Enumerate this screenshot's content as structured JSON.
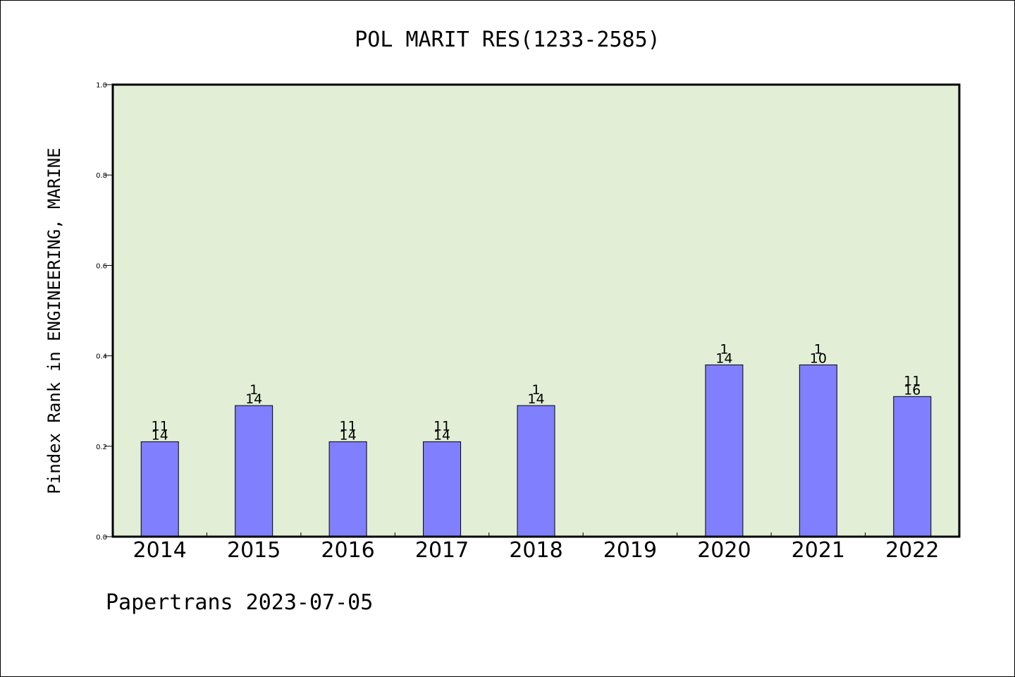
{
  "chart_data": {
    "type": "bar",
    "title": "POL MARIT RES(1233-2585)",
    "xlabel": "",
    "ylabel": "Pindex Rank in ENGINEERING, MARINE",
    "categories": [
      "2014",
      "2015",
      "2016",
      "2017",
      "2018",
      "2019",
      "2020",
      "2021",
      "2022"
    ],
    "values": [
      0.21,
      0.29,
      0.21,
      0.21,
      0.29,
      null,
      0.38,
      0.38,
      0.31
    ],
    "rank_labels": [
      {
        "rank": "11",
        "total": "14"
      },
      {
        "rank": "1",
        "total": "14"
      },
      {
        "rank": "11",
        "total": "14"
      },
      {
        "rank": "11",
        "total": "14"
      },
      {
        "rank": "1",
        "total": "14"
      },
      null,
      {
        "rank": "1",
        "total": "14"
      },
      {
        "rank": "1",
        "total": "10"
      },
      {
        "rank": "11",
        "total": "16"
      }
    ],
    "ylim": [
      0,
      1.0
    ],
    "yticks": [
      "0.0",
      "0.2",
      "0.4",
      "0.6",
      "0.8",
      "1.0"
    ],
    "grid": false,
    "colors": {
      "plot_background": "#e2efd6",
      "bar_fill": "#8080ff",
      "bar_stroke": "#000000"
    }
  },
  "footer": "Papertrans 2023-07-05"
}
